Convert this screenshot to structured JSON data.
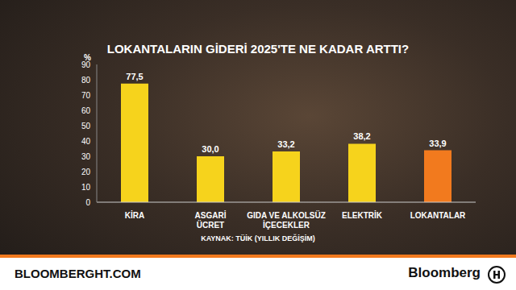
{
  "chart_data": {
    "type": "bar",
    "title": "LOKANTALARIN GİDERİ 2025'TE NE KADAR ARTTI?",
    "y_label": "%",
    "categories": [
      "KİRA",
      "ASGARİ ÜCRET",
      "GIDA VE ALKOLSÜZ İÇECEKLER",
      "ELEKTRİK",
      "LOKANTALAR"
    ],
    "values": [
      77.5,
      30.0,
      33.2,
      38.2,
      33.9
    ],
    "value_labels": [
      "77,5",
      "30,0",
      "33,2",
      "38,2",
      "33,9"
    ],
    "colors": [
      "#f6d31c",
      "#f6d31c",
      "#f6d31c",
      "#f6d31c",
      "#f27a1e"
    ],
    "ylim": [
      0,
      90
    ],
    "yticks": [
      0,
      10,
      20,
      30,
      40,
      50,
      60,
      70,
      80,
      90
    ],
    "grid": false,
    "data_labels": true,
    "source": "KAYNAK: TÜİK (YILLIK DEĞİŞİM)",
    "footer_left": "BLOOMBERGHT.COM",
    "footer_right": "Bloomberg"
  }
}
